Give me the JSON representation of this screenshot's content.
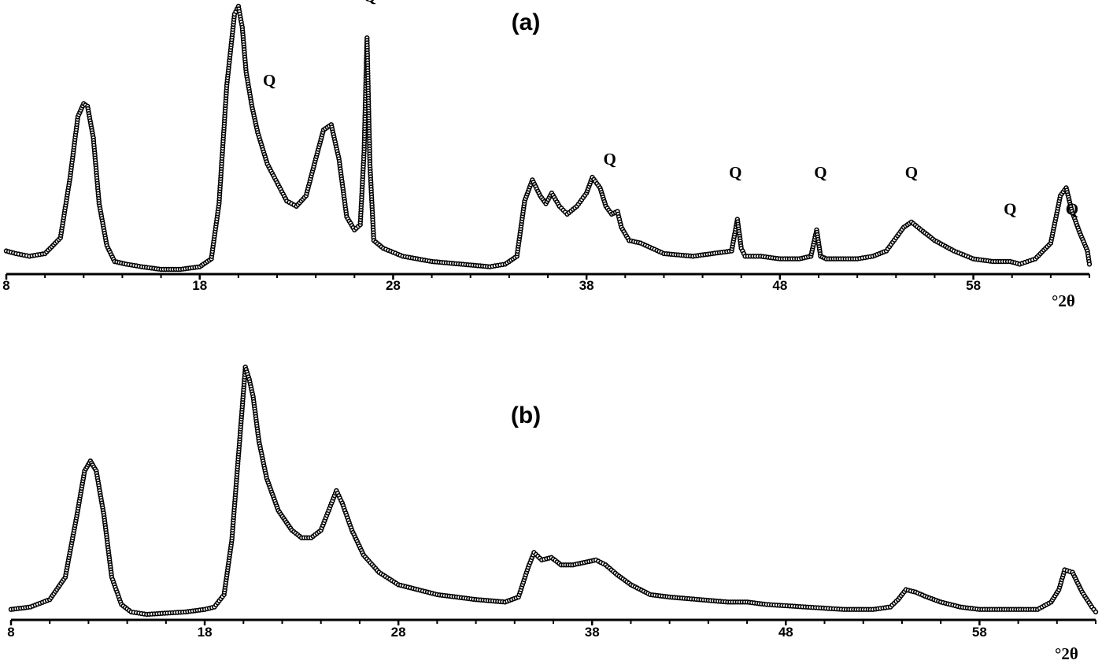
{
  "chart_data": [
    {
      "type": "line",
      "title": "(a)",
      "xlabel": "°2θ",
      "ylabel": "",
      "xlim": [
        8,
        64
      ],
      "ylim": [
        0,
        100
      ],
      "x_ticks": [
        8,
        18,
        28,
        38,
        48,
        58
      ],
      "grid": false,
      "series": [
        {
          "x": [
            8.0,
            8.5,
            9.2,
            10.0,
            10.8,
            11.3,
            11.7,
            12.0,
            12.2,
            12.5,
            12.8,
            13.2,
            13.6,
            14.2,
            15.0,
            16.0,
            17.0,
            18.0,
            18.6,
            19.0,
            19.4,
            19.8,
            20.0,
            20.2,
            20.4,
            20.7,
            21.0,
            21.5,
            22.0,
            22.5,
            23.0,
            23.5,
            24.0,
            24.4,
            24.8,
            25.2,
            25.6,
            26.0,
            26.3,
            26.5,
            26.65,
            26.8,
            27.0,
            27.5,
            28.5,
            30.0,
            31.5,
            33.0,
            33.8,
            34.4,
            34.8,
            35.2,
            35.6,
            35.9,
            36.2,
            36.6,
            37.0,
            37.5,
            38.0,
            38.3,
            38.7,
            39.0,
            39.3,
            39.6,
            39.8,
            40.2,
            40.8,
            42.0,
            43.5,
            44.5,
            45.5,
            45.8,
            46.0,
            46.2,
            47.0,
            48.0,
            49.0,
            49.6,
            49.9,
            50.1,
            50.4,
            51.0,
            52.0,
            52.8,
            53.5,
            54.0,
            54.4,
            54.8,
            55.3,
            56.0,
            57.0,
            58.0,
            59.0,
            59.9,
            60.4,
            61.2,
            62.0,
            62.5,
            62.8,
            63.1,
            63.5,
            63.9,
            64.0
          ],
          "y": [
            7,
            6,
            5,
            6,
            12,
            35,
            58,
            63,
            62,
            50,
            25,
            9,
            3,
            2,
            1,
            0,
            0,
            1,
            4,
            25,
            70,
            97,
            100,
            92,
            75,
            62,
            52,
            40,
            33,
            26,
            24,
            28,
            42,
            53,
            55,
            42,
            20,
            15,
            17,
            45,
            88,
            40,
            11,
            8,
            5,
            3,
            2,
            1,
            2,
            5,
            26,
            34,
            28,
            25,
            29,
            24,
            21,
            24,
            29,
            35,
            31,
            24,
            21,
            22,
            16,
            11,
            10,
            6,
            5,
            6,
            7,
            19,
            8,
            5,
            5,
            4,
            4,
            5,
            15,
            5,
            4,
            4,
            4,
            5,
            7,
            12,
            16,
            18,
            15,
            11,
            7,
            4,
            3,
            3,
            2,
            4,
            10,
            28,
            31,
            22,
            14,
            7,
            2
          ]
        }
      ],
      "annotations": [
        {
          "text": "Q",
          "x": 21.6,
          "y": 68
        },
        {
          "text": "Q",
          "x": 26.8,
          "y": 100
        },
        {
          "text": "Q",
          "x": 39.2,
          "y": 38
        },
        {
          "text": "Q",
          "x": 45.7,
          "y": 33
        },
        {
          "text": "Q",
          "x": 50.1,
          "y": 33
        },
        {
          "text": "Q",
          "x": 54.8,
          "y": 33
        },
        {
          "text": "Q",
          "x": 59.9,
          "y": 19
        },
        {
          "text": "Q",
          "x": 63.1,
          "y": 19
        }
      ]
    },
    {
      "type": "line",
      "title": "(b)",
      "xlabel": "°2θ",
      "ylabel": "",
      "xlim": [
        8,
        64
      ],
      "ylim": [
        0,
        100
      ],
      "x_ticks": [
        8,
        18,
        28,
        38,
        48,
        58
      ],
      "grid": false,
      "series": [
        {
          "x": [
            8.0,
            9.0,
            10.0,
            10.8,
            11.4,
            11.8,
            12.1,
            12.4,
            12.8,
            13.2,
            13.7,
            14.2,
            15.0,
            17.0,
            18.0,
            18.5,
            19.0,
            19.4,
            19.8,
            20.1,
            20.3,
            20.5,
            20.8,
            21.2,
            21.8,
            22.5,
            23.0,
            23.5,
            24.0,
            24.4,
            24.8,
            25.1,
            25.6,
            26.2,
            27.0,
            28.0,
            30.0,
            32.0,
            33.5,
            34.2,
            34.7,
            35.0,
            35.4,
            35.9,
            36.4,
            37.0,
            37.6,
            38.2,
            38.7,
            39.3,
            40.0,
            41.0,
            42.0,
            43.5,
            45.0,
            46.0,
            47.0,
            49.0,
            51.0,
            52.5,
            53.4,
            53.8,
            54.2,
            54.7,
            55.3,
            56.0,
            57.0,
            58.0,
            59.0,
            60.0,
            61.0,
            61.7,
            62.1,
            62.4,
            62.8,
            63.3,
            63.8,
            64.0
          ],
          "y": [
            2,
            3,
            6,
            15,
            40,
            58,
            62,
            58,
            40,
            15,
            4,
            1,
            0,
            1,
            2,
            3,
            8,
            30,
            70,
            100,
            95,
            88,
            70,
            55,
            42,
            34,
            31,
            31,
            34,
            42,
            50,
            45,
            34,
            24,
            17,
            12,
            8,
            6,
            5,
            7,
            19,
            25,
            22,
            23,
            20,
            20,
            21,
            22,
            20,
            16,
            12,
            8,
            7,
            6,
            5,
            5,
            4,
            3,
            2,
            2,
            3,
            6,
            10,
            9,
            7,
            5,
            3,
            2,
            2,
            2,
            2,
            5,
            10,
            18,
            17,
            9,
            3,
            1
          ]
        }
      ],
      "annotations": []
    }
  ]
}
